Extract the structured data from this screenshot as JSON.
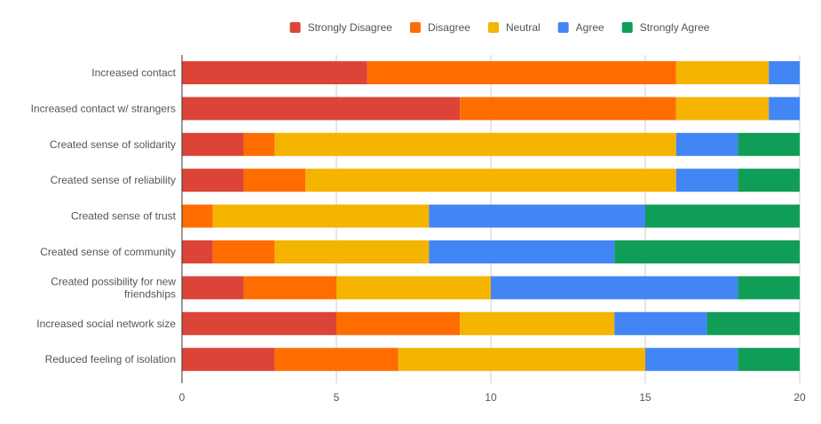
{
  "chart_data": {
    "type": "bar",
    "orientation": "horizontal",
    "stacked": true,
    "title": "",
    "xlabel": "",
    "ylabel": "",
    "xlim": [
      0,
      20
    ],
    "xticks": [
      "0",
      "5",
      "10",
      "15",
      "20"
    ],
    "legend_position": "top",
    "categories": [
      "Increased contact",
      "Increased contact w/ strangers",
      "Created sense of solidarity",
      "Created sense of reliability",
      "Created sense of trust",
      "Created sense of community",
      "Created possibility for new friendships",
      "Increased social network size",
      "Reduced feeling of isolation"
    ],
    "series": [
      {
        "name": "Strongly Disagree",
        "color": "#DB4437",
        "values": [
          6,
          9,
          2,
          2,
          0,
          1,
          2,
          5,
          3
        ]
      },
      {
        "name": "Disagree",
        "color": "#FF6D01",
        "values": [
          10,
          7,
          1,
          2,
          1,
          2,
          3,
          4,
          4
        ]
      },
      {
        "name": "Neutral",
        "color": "#F4B400",
        "values": [
          3,
          3,
          13,
          12,
          7,
          5,
          5,
          5,
          8
        ]
      },
      {
        "name": "Agree",
        "color": "#4285F4",
        "values": [
          1,
          1,
          2,
          2,
          7,
          6,
          8,
          3,
          3
        ]
      },
      {
        "name": "Strongly Agree",
        "color": "#0F9D58",
        "values": [
          0,
          0,
          2,
          2,
          5,
          6,
          2,
          3,
          2
        ]
      }
    ]
  }
}
